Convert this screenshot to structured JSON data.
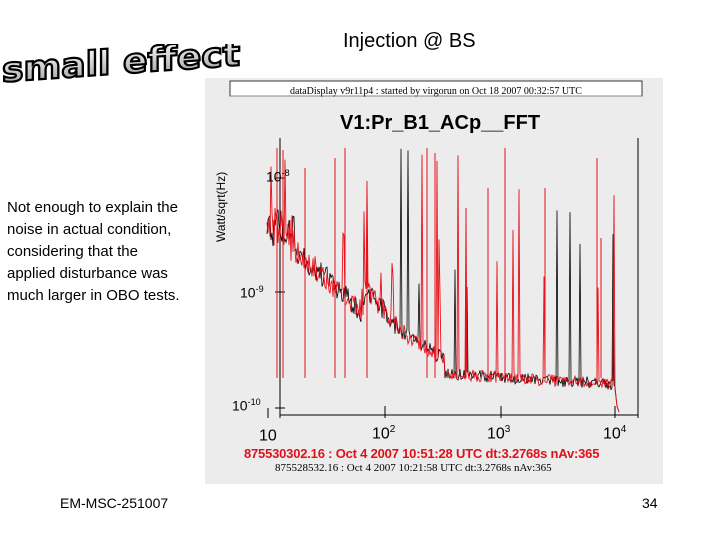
{
  "slide": {
    "title": "Injection @ BS",
    "wordart": "small effect",
    "note": "Not enough to explain the noise in actual condition, considering that the applied disturbance was much larger in OBO tests.",
    "footer_left": "EM-MSC-251007",
    "page_number": "34"
  },
  "plot": {
    "banner": "dataDisplay v9r11p4 : started by virgorun on Oct 18 2007 00:32:57 UTC",
    "title": "V1:Pr_B1_ACp__FFT",
    "ylabel": "Watt/sqrt(Hz)",
    "yticks": [
      {
        "base": "10",
        "exp": "-8"
      },
      {
        "base": "10",
        "exp": "-9"
      },
      {
        "base": "10",
        "exp": "-10"
      }
    ],
    "xticks": [
      {
        "base": "10",
        "exp": ""
      },
      {
        "base": "10",
        "exp": "2"
      },
      {
        "base": "10",
        "exp": "3"
      },
      {
        "base": "10",
        "exp": "4"
      }
    ],
    "legend_red": "875530302.16 : Oct 4 2007 10:51:28 UTC dt:3.2768s nAv:365",
    "legend_black": "875528532.16 : Oct 4 2007 10:21:58 UTC dt:3.2768s nAv:365",
    "colors": {
      "injected": "#e8101a",
      "reference": "#000000",
      "panel": "#ececec"
    }
  }
}
